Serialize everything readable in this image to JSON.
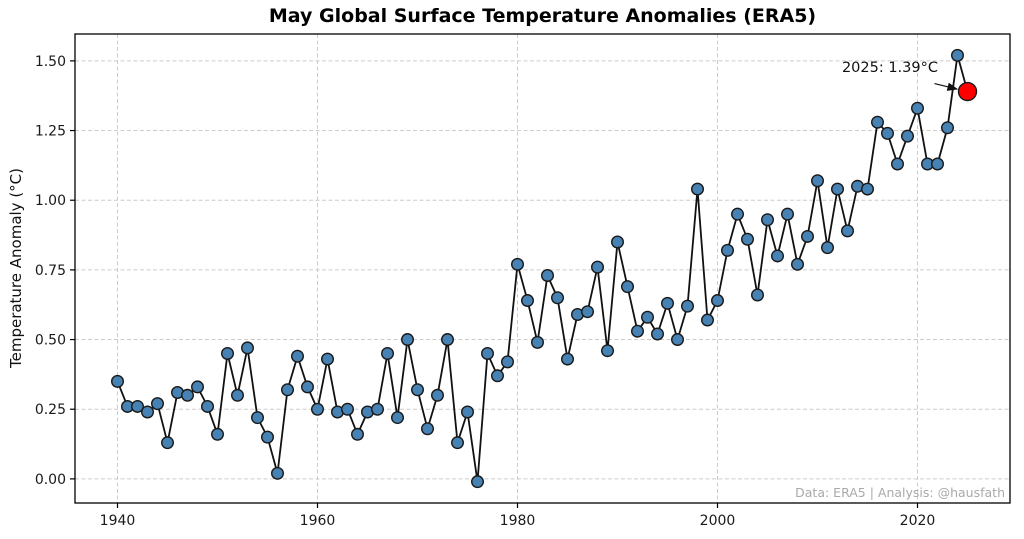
{
  "title": "May Global Surface Temperature Anomalies (ERA5)",
  "watermark": "Data: ERA5 | Analysis: @hausfath",
  "annotation": {
    "label": "2025: 1.39°C",
    "year": 2025,
    "value": 1.39
  },
  "colors": {
    "marker_fill": "#4682b4",
    "marker_edge": "#1a1a1a",
    "line": "#111111",
    "highlight_fill": "#ff0000",
    "grid": "#cccccc",
    "spine": "#000000",
    "tick_label": "#1a1a1a",
    "watermark": "#aaaaaa",
    "background": "#ffffff"
  },
  "chart_data": {
    "type": "line",
    "title": "May Global Surface Temperature Anomalies (ERA5)",
    "xlabel": "",
    "ylabel": "Temperature Anomaly (°C)",
    "x": [
      1940,
      1941,
      1942,
      1943,
      1944,
      1945,
      1946,
      1947,
      1948,
      1949,
      1950,
      1951,
      1952,
      1953,
      1954,
      1955,
      1956,
      1957,
      1958,
      1959,
      1960,
      1961,
      1962,
      1963,
      1964,
      1965,
      1966,
      1967,
      1968,
      1969,
      1970,
      1971,
      1972,
      1973,
      1974,
      1975,
      1976,
      1977,
      1978,
      1979,
      1980,
      1981,
      1982,
      1983,
      1984,
      1985,
      1986,
      1987,
      1988,
      1989,
      1990,
      1991,
      1992,
      1993,
      1994,
      1995,
      1996,
      1997,
      1998,
      1999,
      2000,
      2001,
      2002,
      2003,
      2004,
      2005,
      2006,
      2007,
      2008,
      2009,
      2010,
      2011,
      2012,
      2013,
      2014,
      2015,
      2016,
      2017,
      2018,
      2019,
      2020,
      2021,
      2022,
      2023,
      2024,
      2025
    ],
    "values": [
      0.35,
      0.26,
      0.26,
      0.24,
      0.27,
      0.13,
      0.31,
      0.3,
      0.33,
      0.26,
      0.16,
      0.45,
      0.3,
      0.47,
      0.22,
      0.15,
      0.02,
      0.32,
      0.44,
      0.33,
      0.25,
      0.43,
      0.24,
      0.25,
      0.16,
      0.24,
      0.25,
      0.45,
      0.22,
      0.5,
      0.32,
      0.18,
      0.3,
      0.5,
      0.13,
      0.24,
      -0.01,
      0.45,
      0.37,
      0.42,
      0.77,
      0.64,
      0.49,
      0.73,
      0.65,
      0.43,
      0.59,
      0.6,
      0.76,
      0.46,
      0.85,
      0.69,
      0.53,
      0.58,
      0.52,
      0.63,
      0.5,
      0.62,
      1.04,
      0.57,
      0.64,
      0.82,
      0.95,
      0.86,
      0.66,
      0.93,
      0.8,
      0.95,
      0.77,
      0.87,
      1.07,
      0.83,
      1.04,
      0.89,
      1.05,
      1.04,
      1.28,
      1.24,
      1.13,
      1.23,
      1.33,
      1.13,
      1.13,
      1.26,
      1.52,
      1.39
    ],
    "highlight_year": 2025,
    "xticks": [
      1940,
      1960,
      1980,
      2000,
      2020
    ],
    "yticks": [
      0.0,
      0.25,
      0.5,
      0.75,
      1.0,
      1.25,
      1.5
    ],
    "xlim": [
      1935.75,
      2029.25
    ],
    "ylim": [
      -0.0865,
      1.5965
    ],
    "grid": true,
    "legend": "none"
  }
}
